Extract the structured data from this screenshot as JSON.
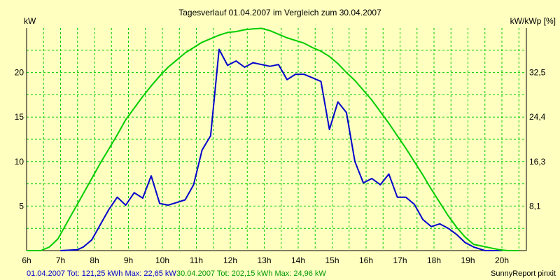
{
  "chart_data": {
    "type": "line",
    "title": "Tagesverlauf 01.04.2007 im Vergleich zum 30.04.2007",
    "ylabel_left": "kW",
    "ylabel_right": "kW/kWp [%]",
    "x_ticks": [
      "6h",
      "7h",
      "8h",
      "9h",
      "10h",
      "11h",
      "12h",
      "13h",
      "14h",
      "15h",
      "16h",
      "17h",
      "18h",
      "19h",
      "20h"
    ],
    "y_left_ticks": [
      5,
      10,
      15,
      20
    ],
    "y_right_ticks": [
      "8,1",
      "16,3",
      "24,4",
      "32,5"
    ],
    "xlim": [
      6,
      21.4
    ],
    "ylim": [
      0,
      25
    ],
    "grid": true,
    "series": [
      {
        "name": "01.04.2007",
        "color": "#0000cc",
        "x": [
          7,
          7.5,
          7.67,
          7.92,
          8.17,
          8.42,
          8.67,
          8.92,
          9.17,
          9.42,
          9.67,
          9.92,
          10.17,
          10.42,
          10.67,
          10.92,
          11.17,
          11.42,
          11.67,
          11.92,
          12.17,
          12.42,
          12.67,
          12.92,
          13.17,
          13.42,
          13.67,
          13.92,
          14.17,
          14.42,
          14.67,
          14.92,
          15.17,
          15.42,
          15.67,
          15.92,
          16.17,
          16.42,
          16.67,
          16.92,
          17.17,
          17.42,
          17.67,
          17.92,
          18.17,
          18.42,
          18.67,
          18.92,
          19.17,
          19.5,
          20
        ],
        "y": [
          0,
          0.1,
          0.4,
          1.2,
          2.9,
          4.6,
          6.0,
          5.1,
          6.5,
          5.9,
          8.4,
          5.3,
          5.1,
          5.4,
          5.7,
          7.4,
          11.3,
          12.9,
          22.6,
          20.8,
          21.3,
          20.6,
          21.1,
          20.9,
          20.7,
          20.9,
          19.2,
          19.8,
          19.8,
          19.4,
          19.0,
          13.6,
          16.7,
          15.5,
          10.0,
          7.6,
          8.1,
          7.4,
          8.6,
          6.0,
          6.0,
          5.2,
          3.5,
          2.7,
          3.0,
          2.5,
          1.8,
          0.9,
          0.4,
          0,
          0
        ]
      },
      {
        "name": "30.04.2007",
        "color": "#00cc00",
        "x": [
          6,
          6.42,
          6.67,
          6.92,
          7.17,
          7.42,
          7.67,
          7.92,
          8.17,
          8.42,
          8.67,
          8.92,
          9.17,
          9.42,
          9.67,
          9.92,
          10.17,
          10.42,
          10.67,
          10.92,
          11.17,
          11.42,
          11.67,
          11.92,
          12.17,
          12.42,
          12.67,
          12.92,
          13.17,
          13.42,
          13.67,
          13.92,
          14.17,
          14.42,
          14.67,
          14.92,
          15.17,
          15.42,
          15.67,
          15.92,
          16.17,
          16.42,
          16.67,
          16.92,
          17.17,
          17.42,
          17.67,
          17.92,
          18.17,
          18.42,
          18.67,
          18.92,
          19.17,
          19.42,
          19.67,
          19.92,
          20.17,
          20.5
        ],
        "y": [
          0,
          0,
          0.4,
          1.3,
          3.0,
          4.7,
          6.4,
          8.1,
          9.8,
          11.4,
          13.0,
          14.7,
          16.0,
          17.3,
          18.5,
          19.6,
          20.6,
          21.4,
          22.2,
          22.8,
          23.4,
          23.8,
          24.2,
          24.5,
          24.6,
          24.8,
          24.9,
          24.96,
          24.7,
          24.3,
          23.9,
          23.6,
          23.3,
          22.8,
          22.4,
          21.8,
          21.0,
          20.0,
          19.1,
          18.0,
          16.9,
          15.6,
          14.3,
          12.9,
          11.5,
          10.0,
          8.5,
          6.9,
          5.4,
          3.9,
          2.6,
          1.5,
          0.7,
          0.5,
          0.3,
          0.1,
          0,
          0
        ]
      }
    ]
  },
  "footer": {
    "series1": "01.04.2007 Tot: 121,25 kWh Max: 22,65 kW",
    "series2": "30.04.2007 Tot: 202,15 kWh Max: 24,96 kW",
    "brand": "SunnyReport pinxit"
  },
  "colors": {
    "background": "#ffffc0",
    "grid": "#00cc00",
    "axis": "#000000"
  }
}
